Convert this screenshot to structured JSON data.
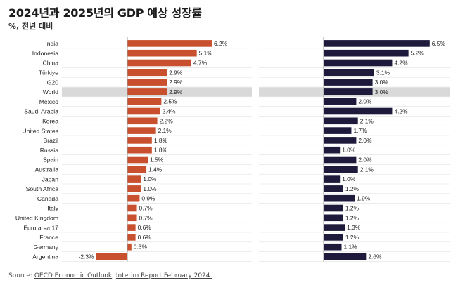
{
  "header": {
    "title": "2024년과 2025년의 GDP 예상 성장률",
    "subtitle": "%, 전년 대비"
  },
  "footer": {
    "source_prefix": "Source:",
    "source_link1": "OECD Economic Outlook",
    "source_sep": ",",
    "source_link2": "Interim Report February 2024."
  },
  "colors": {
    "left_bar": "#c9502e",
    "right_bar": "#1e1a3c",
    "highlight_row": "#d9d9d9",
    "zero_line": "#9a9a9a",
    "row_line": "#e2e2e2"
  },
  "chart_data": [
    {
      "type": "bar",
      "orientation": "horizontal",
      "categories": [
        "India",
        "Indonesia",
        "China",
        "Türkiye",
        "G20",
        "World",
        "Mexico",
        "Saudi Arabia",
        "Korea",
        "United States",
        "Brazil",
        "Russia",
        "Spain",
        "Australia",
        "Japan",
        "South Africa",
        "Canada",
        "Italy",
        "United Kingdom",
        "Euro area 17",
        "France",
        "Germany",
        "Argentina"
      ],
      "values": [
        6.2,
        5.1,
        4.7,
        2.9,
        2.9,
        2.9,
        2.5,
        2.4,
        2.2,
        2.1,
        1.8,
        1.8,
        1.5,
        1.4,
        1.0,
        1.0,
        0.9,
        0.7,
        0.7,
        0.6,
        0.6,
        0.3,
        -2.3
      ],
      "data_labels": [
        "6.2%",
        "5.1%",
        "4.7%",
        "2.9%",
        "2.9%",
        "2.9%",
        "2.5%",
        "2.4%",
        "2.2%",
        "2.1%",
        "1.8%",
        "1.8%",
        "1.5%",
        "1.4%",
        "1.0%",
        "1.0%",
        "0.9%",
        "0.7%",
        "0.7%",
        "0.6%",
        "0.6%",
        "0.3%",
        "-2.3%"
      ],
      "highlight": "World",
      "xlim": [
        -2.3,
        6.2
      ]
    },
    {
      "type": "bar",
      "orientation": "horizontal",
      "categories": [
        "India",
        "Indonesia",
        "China",
        "Türkiye",
        "G20",
        "World",
        "Mexico",
        "Saudi Arabia",
        "Korea",
        "United States",
        "Brazil",
        "Russia",
        "Spain",
        "Australia",
        "Japan",
        "South Africa",
        "Canada",
        "Italy",
        "United Kingdom",
        "Euro area 17",
        "France",
        "Germany",
        "Argentina"
      ],
      "values": [
        6.5,
        5.2,
        4.2,
        3.1,
        3.0,
        3.0,
        2.0,
        4.2,
        2.1,
        1.7,
        2.0,
        1.0,
        2.0,
        2.1,
        1.0,
        1.2,
        1.9,
        1.2,
        1.2,
        1.3,
        1.2,
        1.1,
        2.6
      ],
      "data_labels": [
        "6.5%",
        "5.2%",
        "4.2%",
        "3.1%",
        "3.0%",
        "3.0%",
        "2.0%",
        "4.2%",
        "2.1%",
        "1.7%",
        "2.0%",
        "1.0%",
        "2.0%",
        "2.1%",
        "1.0%",
        "1.2%",
        "1.9%",
        "1.2%",
        "1.2%",
        "1.3%",
        "1.2%",
        "1.1%",
        "2.6%"
      ],
      "highlight": "World",
      "xlim": [
        0,
        6.5
      ]
    }
  ]
}
